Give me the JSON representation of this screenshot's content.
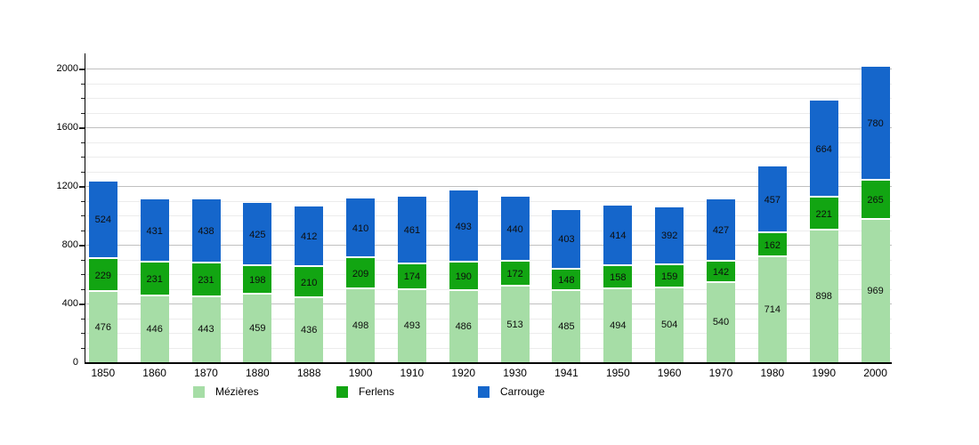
{
  "chart_data": {
    "type": "bar",
    "stacked": true,
    "title": "",
    "xlabel": "",
    "ylabel": "",
    "categories": [
      "1850",
      "1860",
      "1870",
      "1880",
      "1888",
      "1900",
      "1910",
      "1920",
      "1930",
      "1941",
      "1950",
      "1960",
      "1970",
      "1980",
      "1990",
      "2000"
    ],
    "series": [
      {
        "name": "Mézières",
        "color": "#A6DDA6",
        "values": [
          476,
          446,
          443,
          459,
          436,
          498,
          493,
          486,
          513,
          485,
          494,
          504,
          540,
          714,
          898,
          969
        ]
      },
      {
        "name": "Ferlens",
        "color": "#12A512",
        "values": [
          229,
          231,
          231,
          198,
          210,
          209,
          174,
          190,
          172,
          148,
          158,
          159,
          142,
          162,
          221,
          265
        ]
      },
      {
        "name": "Carrouge",
        "color": "#1566CB",
        "values": [
          524,
          431,
          438,
          425,
          412,
          410,
          461,
          493,
          440,
          403,
          414,
          392,
          427,
          457,
          664,
          780
        ]
      }
    ],
    "ylim": [
      0,
      2000
    ],
    "yticks": [
      0,
      400,
      800,
      1200,
      1600,
      2000
    ],
    "minor_grid_step": 100,
    "grid": true,
    "legend_position": "bottom",
    "data_labels": true
  },
  "legend": {
    "items": [
      {
        "label": "Mézières",
        "color": "#A6DDA6"
      },
      {
        "label": "Ferlens",
        "color": "#12A512"
      },
      {
        "label": "Carrouge",
        "color": "#1566CB"
      }
    ]
  },
  "colors": {
    "background": "#FFFFFF",
    "axis": "#000000",
    "major_grid": "#C0C0C0",
    "minor_grid": "#ECECEC",
    "value_label": "#0D0D0D"
  }
}
